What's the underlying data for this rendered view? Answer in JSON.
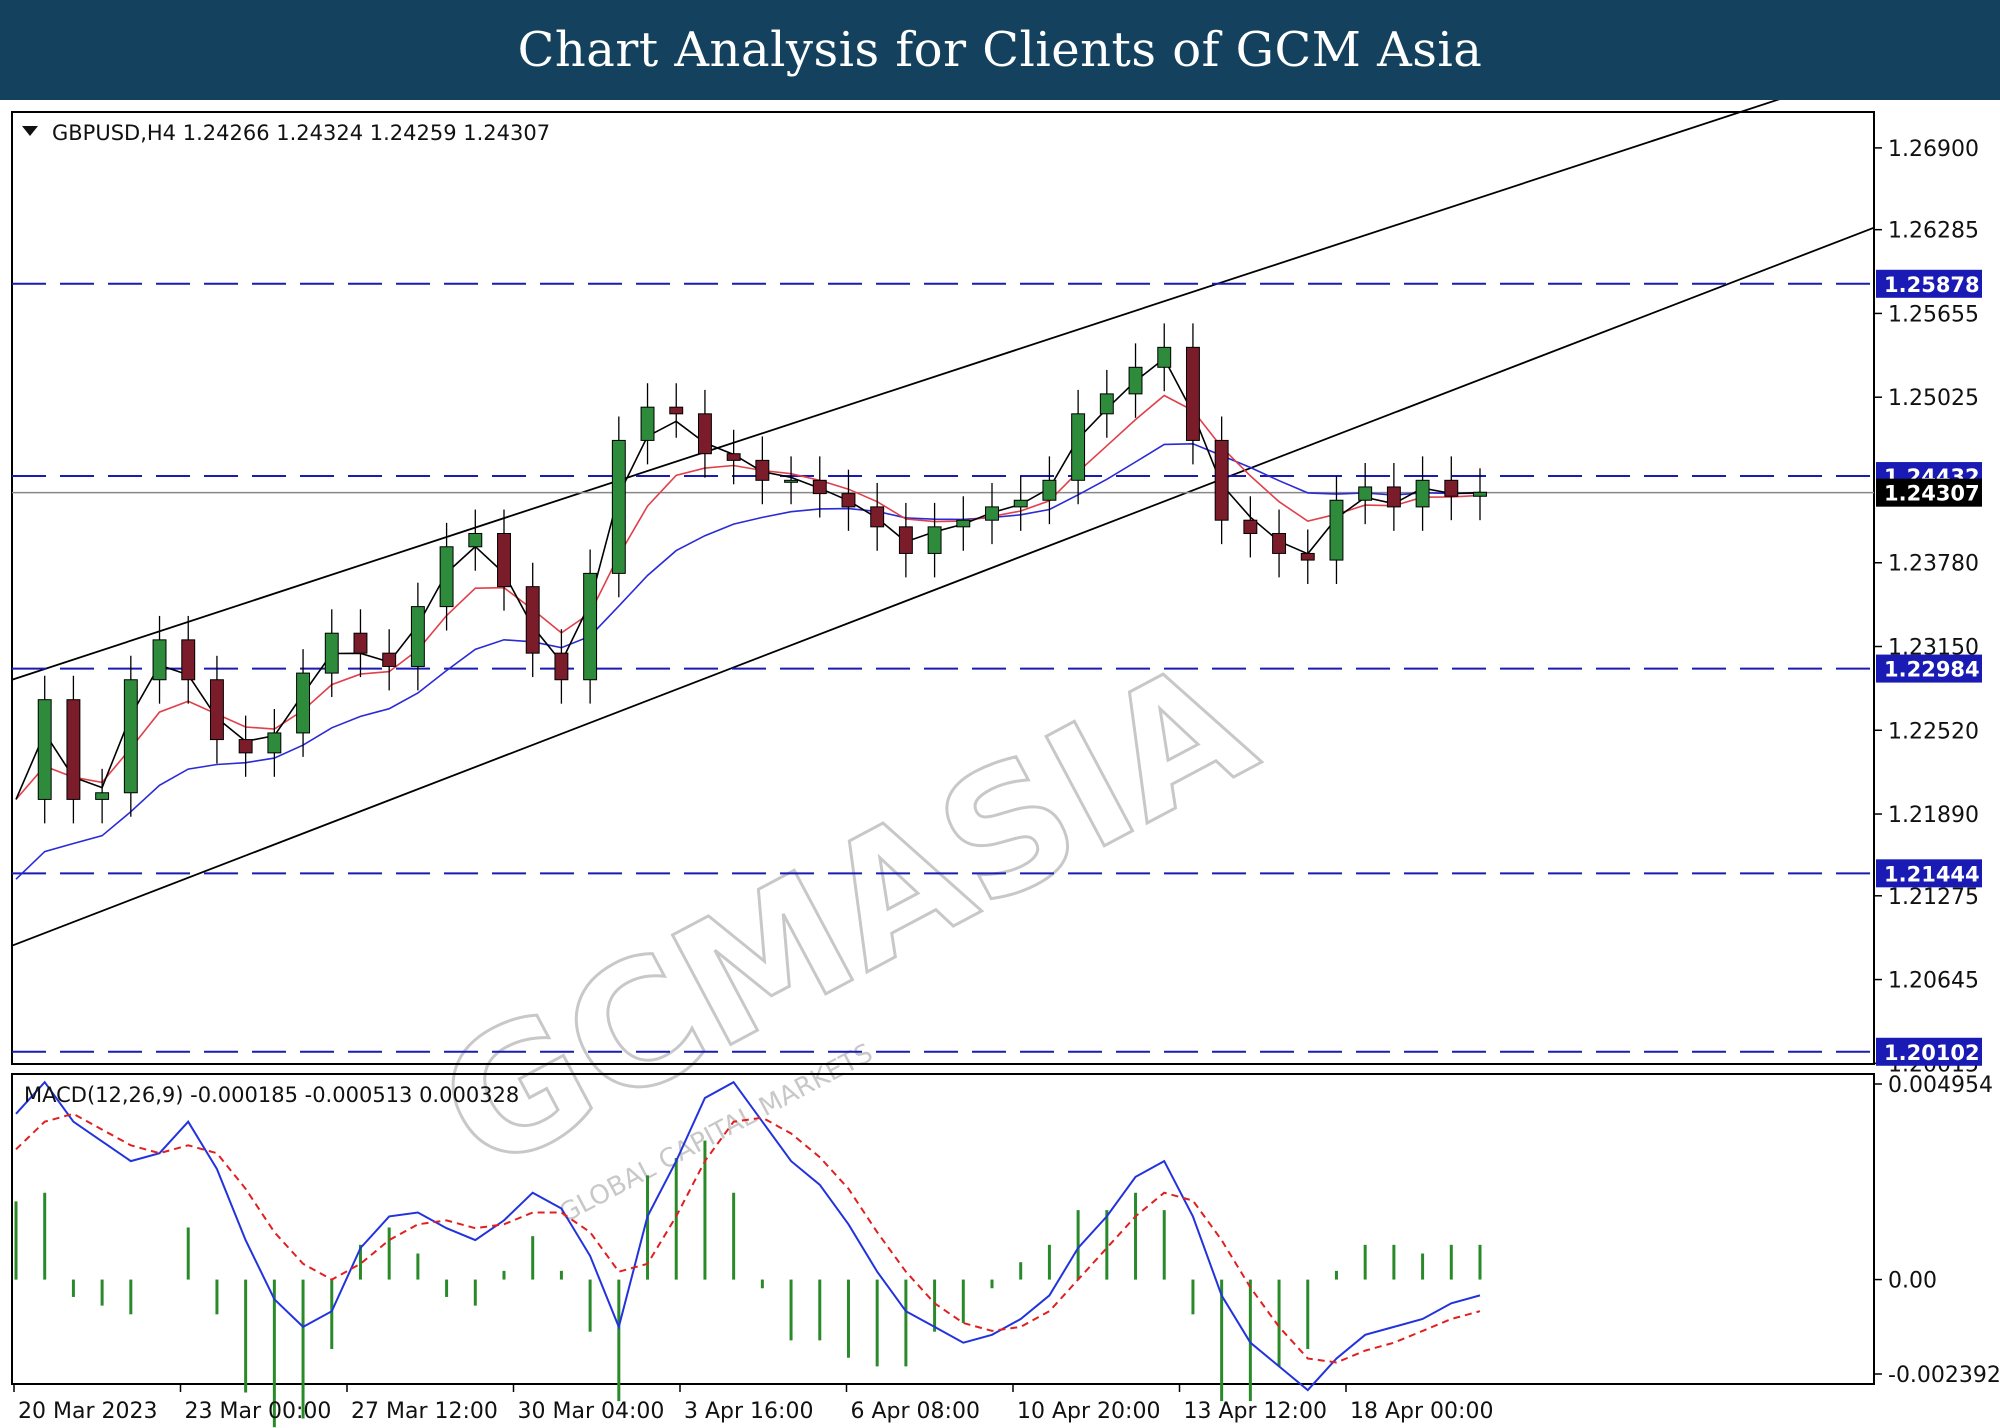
{
  "banner": {
    "title": "Chart Analysis for Clients of GCM Asia"
  },
  "watermark": {
    "main": "GCMASIA",
    "sub": "GLOBAL CAPITAL MARKETS"
  },
  "colors": {
    "banner_bg": "#14425e",
    "bull_candle": "#2e8b3c",
    "bear_candle": "#7a1c2a",
    "ma_fast": "#000000",
    "ma_mid": "#e0404a",
    "ma_slow": "#2a2ad6",
    "level_line": "#1a1ab4",
    "badge": "#1a1ab4",
    "macd_line": "#2233dd",
    "signal_line": "#e02020",
    "histogram": "#2a8a2a"
  },
  "chart_data": [
    {
      "type": "candlestick",
      "symbol": "GBPUSD",
      "timeframe": "H4",
      "info": "GBPUSD,H4  1.24266 1.24324 1.24259 1.24307",
      "ohlc_header": {
        "open": 1.24266,
        "high": 1.24324,
        "low": 1.24259,
        "close": 1.24307
      },
      "ylim": [
        1.2001,
        1.2717
      ],
      "y_ticks": [
        "1.26900",
        "1.26285",
        "1.25655",
        "1.25025",
        "1.23780",
        "1.23150",
        "1.22520",
        "1.21890",
        "1.21275",
        "1.20645",
        "1.20015"
      ],
      "x_labels": [
        "20 Mar 2023",
        "23 Mar 00:00",
        "27 Mar 12:00",
        "30 Mar 04:00",
        "3 Apr 16:00",
        "6 Apr 08:00",
        "10 Apr 20:00",
        "13 Apr 12:00",
        "18 Apr 00:00"
      ],
      "current_price": 1.24307,
      "levels": [
        {
          "value": 1.25878,
          "label": "1.25878"
        },
        {
          "value": 1.24432,
          "label": "1.24432"
        },
        {
          "value": 1.22984,
          "label": "1.22984"
        },
        {
          "value": 1.21444,
          "label": "1.21444"
        },
        {
          "value": 1.20102,
          "label": "1.20102"
        }
      ],
      "channel": {
        "upper": {
          "start": 1.229,
          "end": 1.275
        },
        "lower": {
          "start": 1.209,
          "end": 1.263
        }
      },
      "close_path": [
        1.22,
        1.2275,
        1.22,
        1.2205,
        1.229,
        1.232,
        1.229,
        1.2245,
        1.2235,
        1.225,
        1.2295,
        1.2325,
        1.231,
        1.23,
        1.2345,
        1.239,
        1.24,
        1.236,
        1.231,
        1.229,
        1.237,
        1.247,
        1.2495,
        1.249,
        1.246,
        1.2455,
        1.244,
        1.244,
        1.243,
        1.242,
        1.2405,
        1.2385,
        1.2405,
        1.241,
        1.242,
        1.2425,
        1.244,
        1.249,
        1.2505,
        1.2525,
        1.254,
        1.247,
        1.241,
        1.24,
        1.2385,
        1.238,
        1.2425,
        1.2435,
        1.242,
        1.244,
        1.2428,
        1.2431
      ]
    },
    {
      "type": "macd",
      "label": "MACD(12,26,9) -0.000185 -0.000513 0.000328",
      "params": [
        12,
        26,
        9
      ],
      "values": {
        "macd": -0.000185,
        "signal": -0.000513,
        "histogram": 0.000328
      },
      "ylim": [
        -0.002392,
        0.004954
      ],
      "y_ticks": [
        "0.004954",
        "0.00",
        "-0.002392"
      ],
      "macd_path": [
        0.0042,
        0.005,
        0.004,
        0.0035,
        0.003,
        0.0032,
        0.004,
        0.0028,
        0.001,
        -0.0005,
        -0.0012,
        -0.0008,
        0.0008,
        0.0016,
        0.0017,
        0.0013,
        0.001,
        0.0015,
        0.0022,
        0.0018,
        0.0006,
        -0.0012,
        0.0016,
        0.003,
        0.0046,
        0.005,
        0.004,
        0.003,
        0.0024,
        0.0014,
        0.0002,
        -0.0008,
        -0.0012,
        -0.0016,
        -0.0014,
        -0.001,
        -0.0004,
        0.0008,
        0.0016,
        0.0026,
        0.003,
        0.0016,
        -0.0004,
        -0.0016,
        -0.0022,
        -0.0028,
        -0.002,
        -0.0014,
        -0.0012,
        -0.001,
        -0.0006,
        -0.0004
      ],
      "signal_path": [
        0.0033,
        0.004,
        0.0042,
        0.0038,
        0.0034,
        0.0032,
        0.0034,
        0.0032,
        0.0023,
        0.0012,
        0.0004,
        0.0,
        0.0004,
        0.001,
        0.0014,
        0.0015,
        0.0013,
        0.0014,
        0.0017,
        0.0017,
        0.0012,
        0.0002,
        0.0004,
        0.0016,
        0.003,
        0.004,
        0.0041,
        0.0037,
        0.0031,
        0.0023,
        0.0012,
        0.0002,
        -0.0006,
        -0.0011,
        -0.0013,
        -0.0012,
        -0.0008,
        0.0,
        0.0008,
        0.0016,
        0.0022,
        0.002,
        0.001,
        -0.0002,
        -0.0012,
        -0.002,
        -0.0021,
        -0.0018,
        -0.0016,
        -0.0013,
        -0.001,
        -0.0008
      ]
    }
  ]
}
